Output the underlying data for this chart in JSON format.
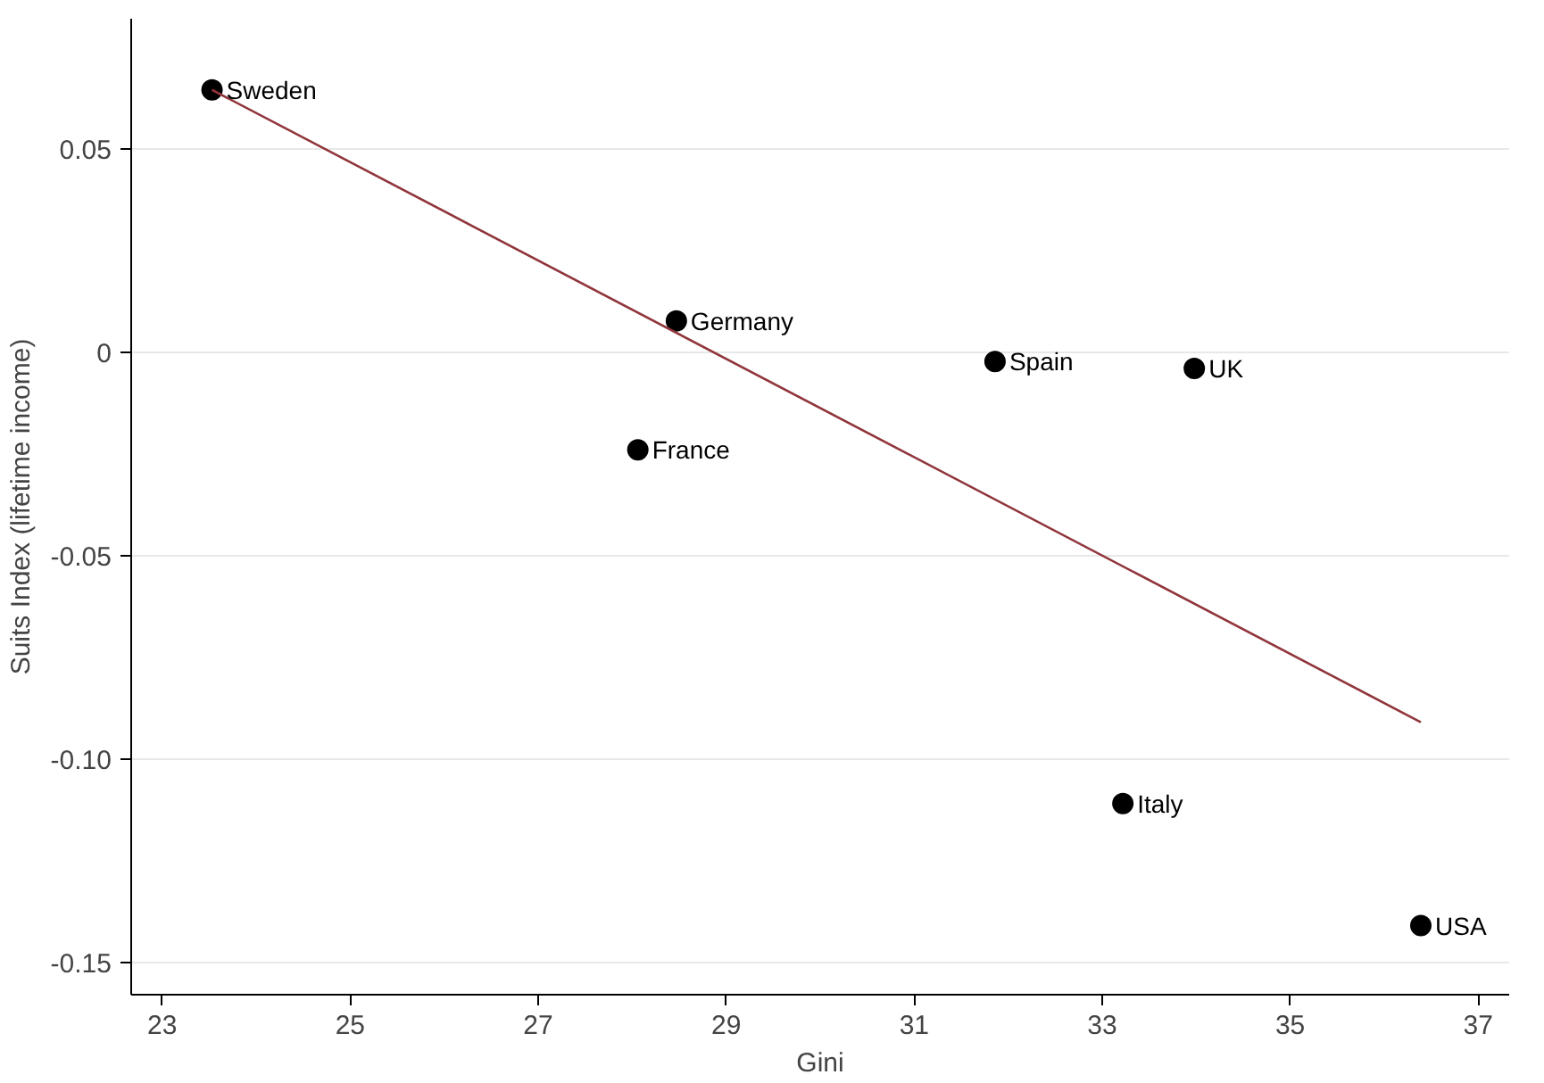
{
  "chart_data": {
    "type": "scatter",
    "xlabel": "Gini",
    "ylabel": "Suits Index (lifetime income)",
    "xlim": [
      22.67,
      37.33
    ],
    "ylim": [
      -0.158,
      0.082
    ],
    "xticks": [
      23,
      25,
      27,
      29,
      31,
      33,
      35,
      37
    ],
    "yticks": [
      {
        "value": 0.05,
        "label": "0.05"
      },
      {
        "value": 0,
        "label": "0"
      },
      {
        "value": -0.05,
        "label": "-0.05"
      },
      {
        "value": -0.1,
        "label": "-0.10"
      },
      {
        "value": -0.15,
        "label": "-0.15"
      }
    ],
    "grid": "y",
    "marker": "circle",
    "series": [
      {
        "color": "#000000",
        "x": [
          23.53,
          28.47,
          28.06,
          31.86,
          33.98,
          33.22,
          36.39
        ],
        "values": [
          0.0645,
          0.0077,
          -0.024,
          -0.0023,
          -0.004,
          -0.111,
          -0.141
        ]
      },
      {
        "type": "line",
        "marker": "none",
        "color": "#90353b",
        "x": [
          23.53,
          36.39
        ],
        "values": [
          0.0645,
          -0.091
        ]
      }
    ],
    "annotations": [
      {
        "text": "Sweden",
        "x": 23.53,
        "y": 0.0645
      },
      {
        "text": "Germany",
        "x": 28.47,
        "y": 0.0077
      },
      {
        "text": "France",
        "x": 28.06,
        "y": -0.024
      },
      {
        "text": "Spain",
        "x": 31.86,
        "y": -0.0023
      },
      {
        "text": "UK",
        "x": 33.98,
        "y": -0.004
      },
      {
        "text": "Italy",
        "x": 33.22,
        "y": -0.111
      },
      {
        "text": "USA",
        "x": 36.39,
        "y": -0.141
      }
    ]
  }
}
